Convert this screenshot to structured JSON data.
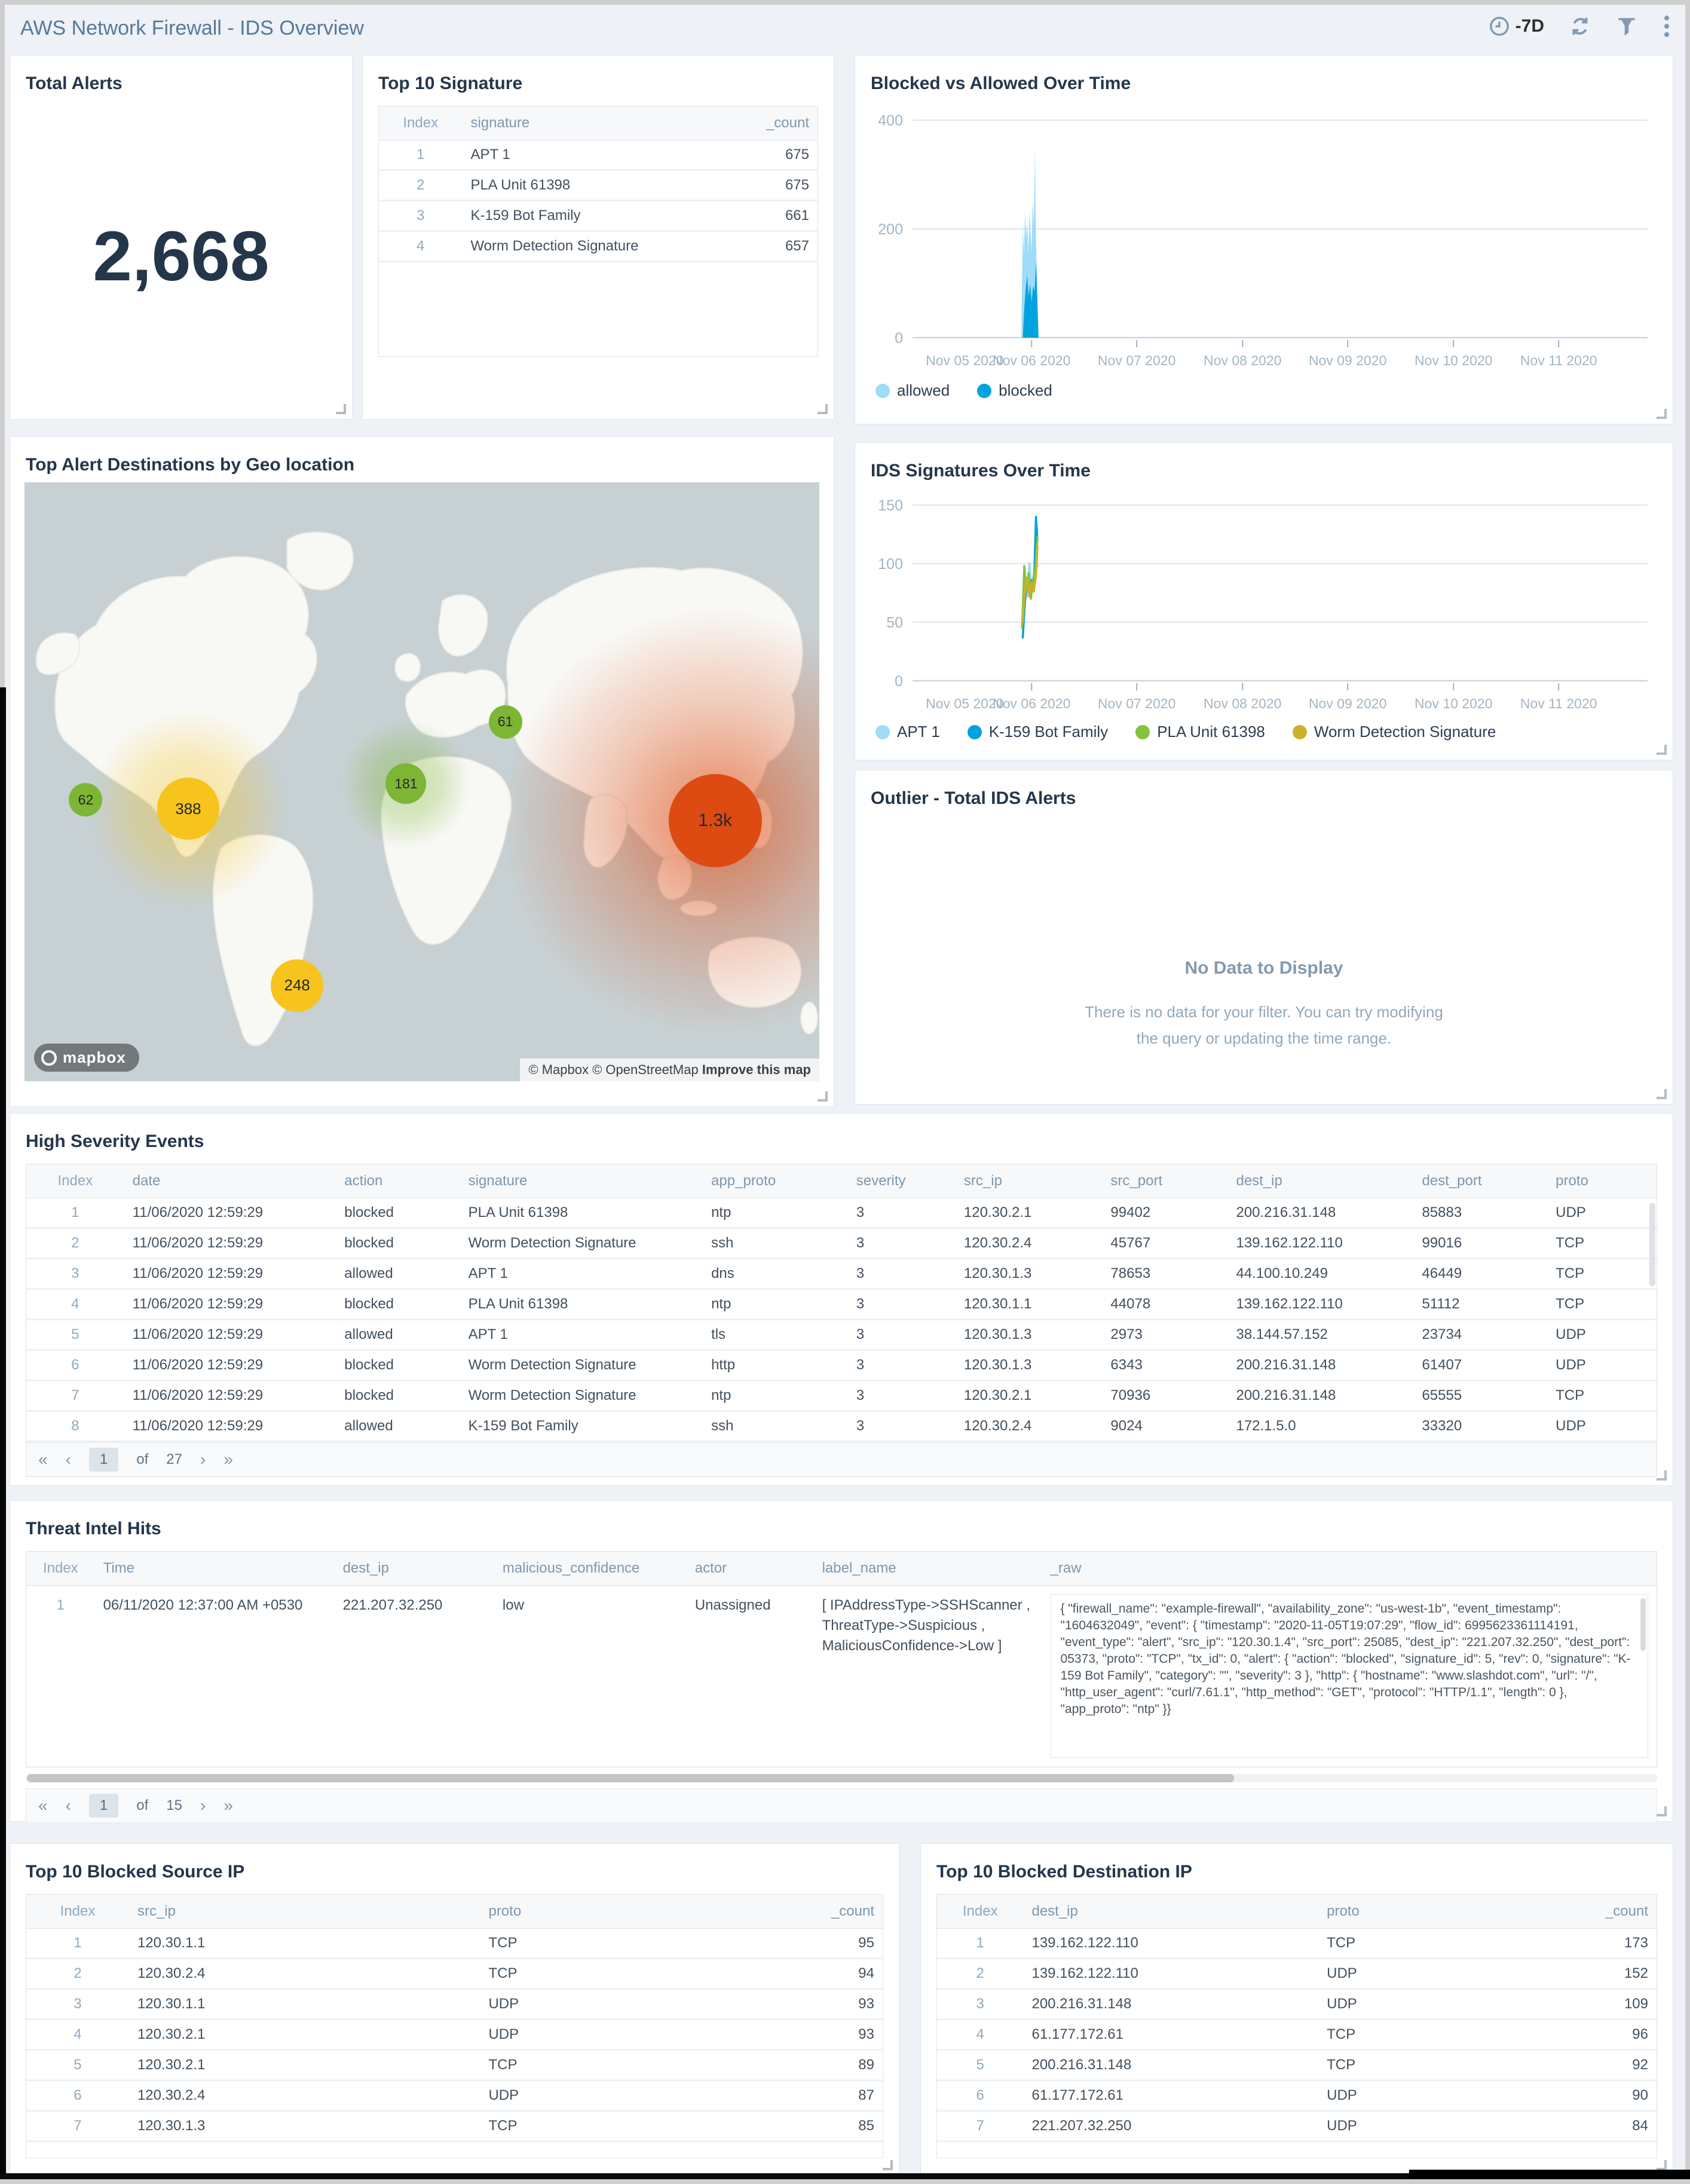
{
  "header": {
    "title": "AWS Network Firewall - IDS Overview",
    "time_range": "-7D"
  },
  "colors": {
    "allowed": "#9edcf7",
    "blocked": "#00a3dd",
    "green": "#84c340",
    "gold": "#ccb22b",
    "bubble_green": "#7cb634",
    "bubble_yellow": "#f6c41d",
    "bubble_red": "#dd4a12",
    "title_dark": "#24364a",
    "header_title": "#54799b"
  },
  "panels": {
    "total_alerts": {
      "title": "Total Alerts",
      "value": "2,668"
    },
    "top_signature": {
      "title": "Top 10 Signature",
      "columns": [
        "Index",
        "signature",
        "_count"
      ],
      "rows": [
        [
          "1",
          "APT 1",
          "675"
        ],
        [
          "2",
          "PLA Unit 61398",
          "675"
        ],
        [
          "3",
          "K-159 Bot Family",
          "661"
        ],
        [
          "4",
          "Worm Detection Signature",
          "657"
        ]
      ]
    },
    "geo": {
      "title": "Top Alert Destinations by Geo location",
      "logo": "mapbox",
      "attribution": "© Mapbox © OpenStreetMap",
      "improve": "Improve this map",
      "bubbles": [
        {
          "label": "62",
          "x": 7.7,
          "y": 53.0,
          "r": 28,
          "color": "#7cb634",
          "glow": 0
        },
        {
          "label": "388",
          "x": 20.6,
          "y": 54.5,
          "r": 52,
          "color": "#f6c41d",
          "glow": 1
        },
        {
          "label": "181",
          "x": 48.0,
          "y": 50.3,
          "r": 34,
          "color": "#7cb634",
          "glow": 1
        },
        {
          "label": "61",
          "x": 60.5,
          "y": 40.0,
          "r": 28,
          "color": "#7cb634",
          "glow": 0
        },
        {
          "label": "248",
          "x": 34.3,
          "y": 84.0,
          "r": 44,
          "color": "#f6c41d",
          "glow": 0
        },
        {
          "label": "1.3k",
          "x": 86.9,
          "y": 56.5,
          "r": 78,
          "color": "#dd4a12",
          "glow": 2
        }
      ]
    },
    "outlier": {
      "title": "Outlier - Total IDS Alerts",
      "no_data_title": "No Data to Display",
      "no_data_message": "There is no data for your filter. You can try modifying the query or updating the time range."
    },
    "high_severity": {
      "title": "High Severity Events",
      "columns": [
        "Index",
        "date",
        "action",
        "signature",
        "app_proto",
        "severity",
        "src_ip",
        "src_port",
        "dest_ip",
        "dest_port",
        "proto"
      ],
      "rows": [
        [
          "1",
          "11/06/2020 12:59:29",
          "blocked",
          "PLA Unit 61398",
          "ntp",
          "3",
          "120.30.2.1",
          "99402",
          "200.216.31.148",
          "85883",
          "UDP"
        ],
        [
          "2",
          "11/06/2020 12:59:29",
          "blocked",
          "Worm Detection Signature",
          "ssh",
          "3",
          "120.30.2.4",
          "45767",
          "139.162.122.110",
          "99016",
          "TCP"
        ],
        [
          "3",
          "11/06/2020 12:59:29",
          "allowed",
          "APT 1",
          "dns",
          "3",
          "120.30.1.3",
          "78653",
          "44.100.10.249",
          "46449",
          "TCP"
        ],
        [
          "4",
          "11/06/2020 12:59:29",
          "blocked",
          "PLA Unit 61398",
          "ntp",
          "3",
          "120.30.1.1",
          "44078",
          "139.162.122.110",
          "51112",
          "TCP"
        ],
        [
          "5",
          "11/06/2020 12:59:29",
          "allowed",
          "APT 1",
          "tls",
          "3",
          "120.30.1.3",
          "2973",
          "38.144.57.152",
          "23734",
          "UDP"
        ],
        [
          "6",
          "11/06/2020 12:59:29",
          "blocked",
          "Worm Detection Signature",
          "http",
          "3",
          "120.30.1.3",
          "6343",
          "200.216.31.148",
          "61407",
          "UDP"
        ],
        [
          "7",
          "11/06/2020 12:59:29",
          "blocked",
          "Worm Detection Signature",
          "ntp",
          "3",
          "120.30.2.1",
          "70936",
          "200.216.31.148",
          "65555",
          "TCP"
        ],
        [
          "8",
          "11/06/2020 12:59:29",
          "allowed",
          "K-159 Bot Family",
          "ssh",
          "3",
          "120.30.2.4",
          "9024",
          "172.1.5.0",
          "33320",
          "UDP"
        ]
      ],
      "pagination": {
        "first": "«",
        "prev": "‹",
        "page": "1",
        "of": "of",
        "total": "27",
        "next": "›",
        "last": "»"
      }
    },
    "threat_intel": {
      "title": "Threat Intel Hits",
      "columns": [
        "Index",
        "Time",
        "dest_ip",
        "malicious_confidence",
        "actor",
        "label_name",
        "_raw"
      ],
      "rows": [
        [
          "1",
          "06/11/2020 12:37:00 AM +0530",
          "221.207.32.250",
          "low",
          "Unassigned",
          "[ IPAddressType->SSHScanner , ThreatType->Suspicious , MaliciousConfidence->Low ]",
          "{ \"firewall_name\": \"example-firewall\", \"availability_zone\": \"us-west-1b\", \"event_timestamp\": \"1604632049\", \"event\": { \"timestamp\": \"2020-11-05T19:07:29\", \"flow_id\": 6995623361114191, \"event_type\": \"alert\", \"src_ip\": \"120.30.1.4\", \"src_port\": 25085, \"dest_ip\": \"221.207.32.250\", \"dest_port\": 05373, \"proto\": \"TCP\", \"tx_id\": 0, \"alert\": { \"action\": \"blocked\", \"signature_id\": 5, \"rev\": 0, \"signature\": \"K-159 Bot Family\", \"category\": \"\", \"severity\": 3 }, \"http\": { \"hostname\": \"www.slashdot.com\", \"url\": \"/\", \"http_user_agent\": \"curl/7.61.1\", \"http_method\": \"GET\", \"protocol\": \"HTTP/1.1\", \"length\": 0 }, \"app_proto\": \"ntp\" }}"
        ]
      ],
      "pagination": {
        "first": "«",
        "prev": "‹",
        "page": "1",
        "of": "of",
        "total": "15",
        "next": "›",
        "last": "»"
      }
    },
    "blocked_source": {
      "title": "Top 10 Blocked Source IP",
      "columns": [
        "Index",
        "src_ip",
        "proto",
        "_count"
      ],
      "rows": [
        [
          "1",
          "120.30.1.1",
          "TCP",
          "95"
        ],
        [
          "2",
          "120.30.2.4",
          "TCP",
          "94"
        ],
        [
          "3",
          "120.30.1.1",
          "UDP",
          "93"
        ],
        [
          "4",
          "120.30.2.1",
          "UDP",
          "93"
        ],
        [
          "5",
          "120.30.2.1",
          "TCP",
          "89"
        ],
        [
          "6",
          "120.30.2.4",
          "UDP",
          "87"
        ],
        [
          "7",
          "120.30.1.3",
          "TCP",
          "85"
        ]
      ]
    },
    "blocked_dest": {
      "title": "Top 10 Blocked Destination IP",
      "columns": [
        "Index",
        "dest_ip",
        "proto",
        "_count"
      ],
      "rows": [
        [
          "1",
          "139.162.122.110",
          "TCP",
          "173"
        ],
        [
          "2",
          "139.162.122.110",
          "UDP",
          "152"
        ],
        [
          "3",
          "200.216.31.148",
          "UDP",
          "109"
        ],
        [
          "4",
          "61.177.172.61",
          "TCP",
          "96"
        ],
        [
          "5",
          "200.216.31.148",
          "TCP",
          "92"
        ],
        [
          "6",
          "61.177.172.61",
          "UDP",
          "90"
        ],
        [
          "7",
          "221.207.32.250",
          "UDP",
          "84"
        ]
      ]
    }
  },
  "chart_data": [
    {
      "type": "area",
      "title": "Blocked vs Allowed Over Time",
      "ylabel": "",
      "xlabel": "",
      "ylim": [
        0,
        400
      ],
      "yticks": [
        0,
        200,
        400
      ],
      "grid": true,
      "legend_position": "bottom",
      "xticks": [
        {
          "label": "Nov 05 2020",
          "f": 0.018
        },
        {
          "label": "Nov 06 2020",
          "f": 0.162
        },
        {
          "label": "Nov 07 2020",
          "f": 0.305
        },
        {
          "label": "Nov 08 2020",
          "f": 0.449
        },
        {
          "label": "Nov 09 2020",
          "f": 0.592
        },
        {
          "label": "Nov 10 2020",
          "f": 0.736
        },
        {
          "label": "Nov 11 2020",
          "f": 0.879
        }
      ],
      "series": [
        {
          "name": "allowed",
          "color": "#9edcf7",
          "fill": true,
          "points": [
            [
              0.148,
              0
            ],
            [
              0.15,
              210
            ],
            [
              0.1515,
              150
            ],
            [
              0.153,
              230
            ],
            [
              0.1545,
              185
            ],
            [
              0.156,
              215
            ],
            [
              0.1575,
              155
            ],
            [
              0.159,
              235
            ],
            [
              0.1605,
              195
            ],
            [
              0.162,
              160
            ],
            [
              0.1635,
              255
            ],
            [
              0.165,
              205
            ],
            [
              0.1665,
              345
            ],
            [
              0.168,
              180
            ],
            [
              0.1695,
              90
            ],
            [
              0.171,
              0
            ]
          ]
        },
        {
          "name": "blocked",
          "color": "#00a3dd",
          "fill": true,
          "points": [
            [
              0.15,
              0
            ],
            [
              0.152,
              55
            ],
            [
              0.154,
              90
            ],
            [
              0.156,
              115
            ],
            [
              0.158,
              75
            ],
            [
              0.16,
              100
            ],
            [
              0.162,
              65
            ],
            [
              0.164,
              95
            ],
            [
              0.166,
              85
            ],
            [
              0.168,
              140
            ],
            [
              0.17,
              60
            ],
            [
              0.1715,
              0
            ]
          ]
        }
      ]
    },
    {
      "type": "line",
      "title": "IDS Signatures Over Time",
      "ylabel": "",
      "xlabel": "",
      "ylim": [
        0,
        150
      ],
      "yticks": [
        0,
        50,
        100,
        150
      ],
      "grid": true,
      "legend_position": "bottom",
      "xticks": [
        {
          "label": "Nov 05 2020",
          "f": 0.018
        },
        {
          "label": "Nov 06 2020",
          "f": 0.162
        },
        {
          "label": "Nov 07 2020",
          "f": 0.305
        },
        {
          "label": "Nov 08 2020",
          "f": 0.449
        },
        {
          "label": "Nov 09 2020",
          "f": 0.592
        },
        {
          "label": "Nov 10 2020",
          "f": 0.736
        },
        {
          "label": "Nov 11 2020",
          "f": 0.879
        }
      ],
      "series": [
        {
          "name": "APT 1",
          "color": "#9edcf7",
          "fill": false,
          "points": [
            [
              0.15,
              60
            ],
            [
              0.153,
              88
            ],
            [
              0.156,
              72
            ],
            [
              0.159,
              100
            ],
            [
              0.162,
              78
            ],
            [
              0.165,
              92
            ],
            [
              0.168,
              105
            ],
            [
              0.17,
              98
            ]
          ]
        },
        {
          "name": "K-159 Bot Family",
          "color": "#00a3dd",
          "fill": false,
          "points": [
            [
              0.15,
              37
            ],
            [
              0.153,
              68
            ],
            [
              0.156,
              88
            ],
            [
              0.159,
              74
            ],
            [
              0.162,
              86
            ],
            [
              0.165,
              78
            ],
            [
              0.168,
              140
            ],
            [
              0.17,
              120
            ]
          ]
        },
        {
          "name": "PLA Unit 61398",
          "color": "#84c340",
          "fill": false,
          "points": [
            [
              0.149,
              45
            ],
            [
              0.152,
              98
            ],
            [
              0.155,
              76
            ],
            [
              0.158,
              92
            ],
            [
              0.161,
              70
            ],
            [
              0.164,
              86
            ],
            [
              0.167,
              95
            ],
            [
              0.17,
              123
            ]
          ]
        },
        {
          "name": "Worm Detection Signature",
          "color": "#ccb22b",
          "fill": false,
          "points": [
            [
              0.15,
              50
            ],
            [
              0.153,
              80
            ],
            [
              0.156,
              88
            ],
            [
              0.159,
              72
            ],
            [
              0.162,
              84
            ],
            [
              0.165,
              76
            ],
            [
              0.168,
              90
            ],
            [
              0.17,
              115
            ]
          ]
        }
      ]
    }
  ]
}
